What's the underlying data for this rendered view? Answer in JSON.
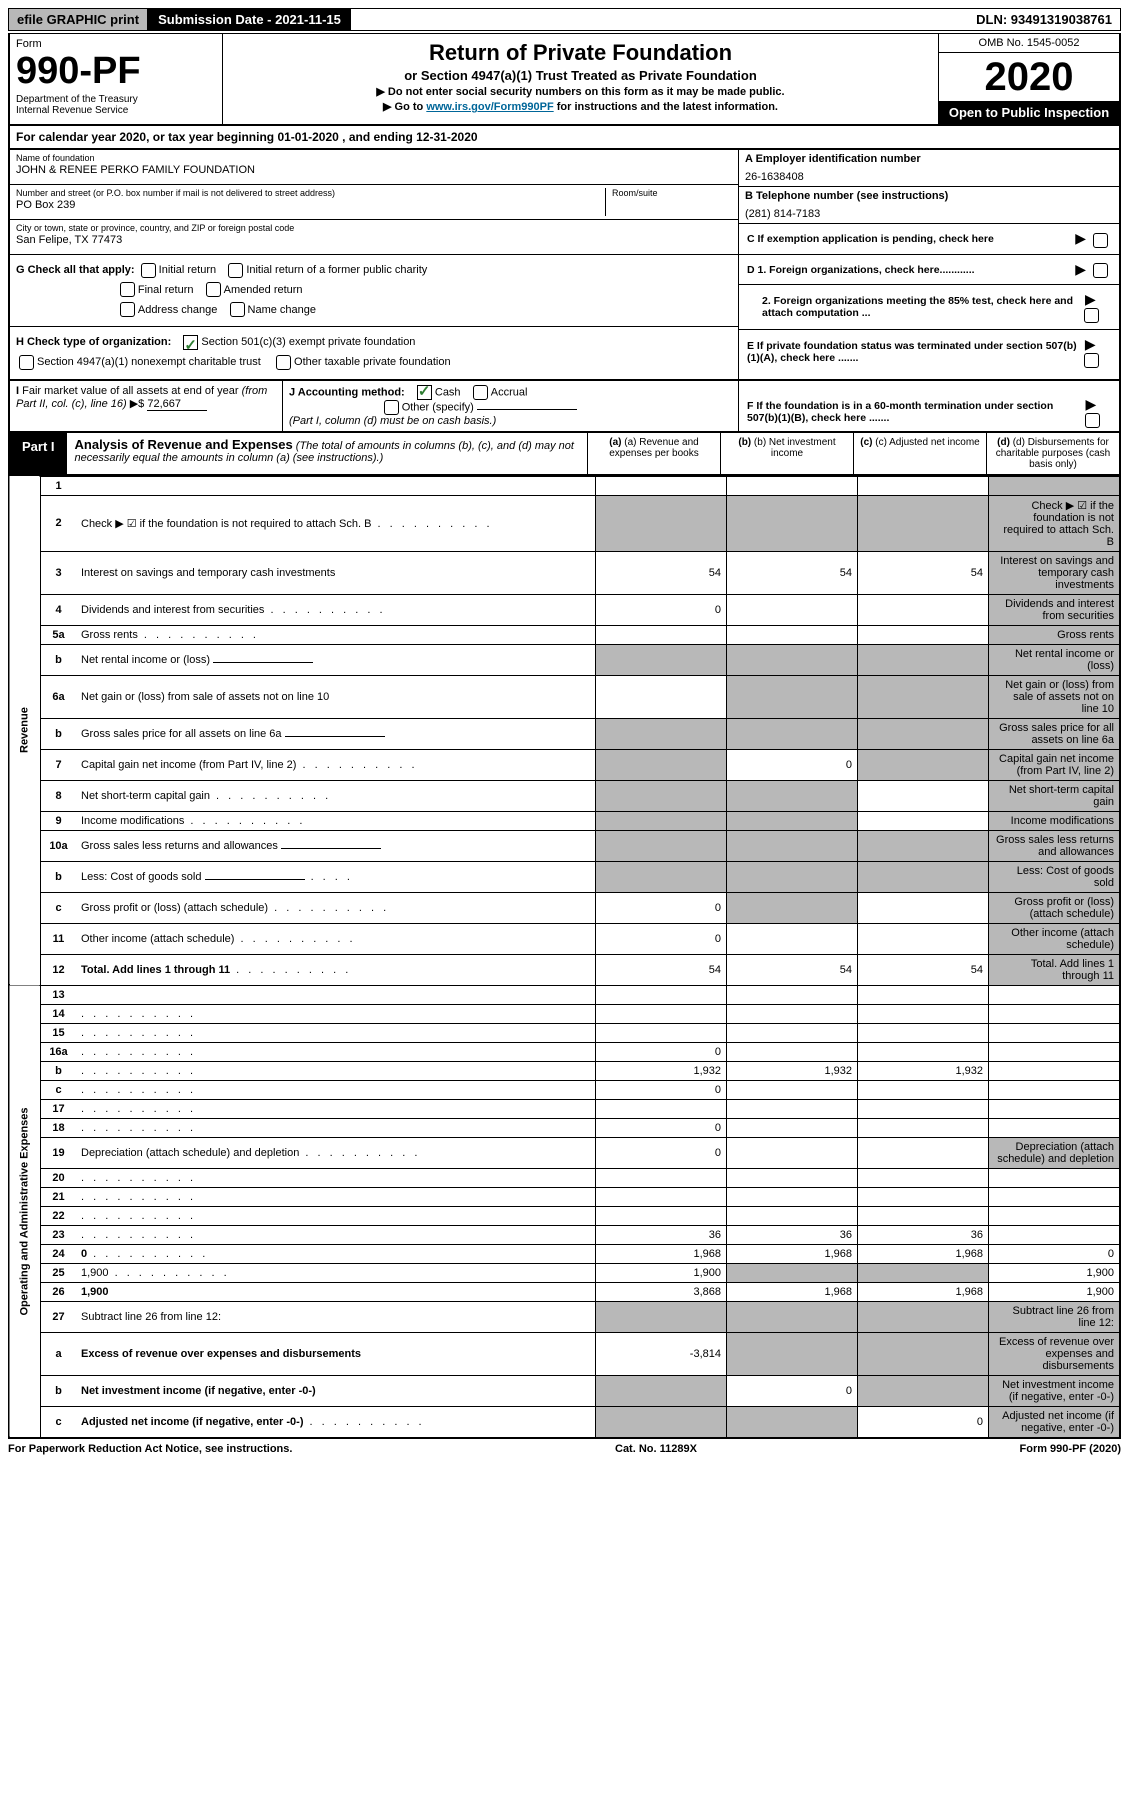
{
  "topbar": {
    "efile": "efile GRAPHIC print",
    "submission": "Submission Date - 2021-11-15",
    "dln": "DLN: 93491319038761"
  },
  "header": {
    "form_label": "Form",
    "form_num": "990-PF",
    "dept": "Department of the Treasury\nInternal Revenue Service",
    "title": "Return of Private Foundation",
    "subtitle": "or Section 4947(a)(1) Trust Treated as Private Foundation",
    "instr1": "▶ Do not enter social security numbers on this form as it may be made public.",
    "instr2_pre": "▶ Go to ",
    "instr2_link": "www.irs.gov/Form990PF",
    "instr2_post": " for instructions and the latest information.",
    "omb": "OMB No. 1545-0052",
    "year": "2020",
    "open": "Open to Public Inspection"
  },
  "calyear": "For calendar year 2020, or tax year beginning 01-01-2020                    , and ending 12-31-2020",
  "info": {
    "name_label": "Name of foundation",
    "name": "JOHN & RENEE PERKO FAMILY FOUNDATION",
    "addr_label": "Number and street (or P.O. box number if mail is not delivered to street address)",
    "addr": "PO Box 239",
    "room_label": "Room/suite",
    "city_label": "City or town, state or province, country, and ZIP or foreign postal code",
    "city": "San Felipe, TX  77473",
    "ein_label": "A Employer identification number",
    "ein": "26-1638408",
    "phone_label": "B Telephone number (see instructions)",
    "phone": "(281) 814-7183",
    "c_label": "C If exemption application is pending, check here",
    "d1_label": "D 1. Foreign organizations, check here............",
    "d2_label": "2. Foreign organizations meeting the 85% test, check here and attach computation ...",
    "e_label": "E If private foundation status was terminated under section 507(b)(1)(A), check here .......",
    "f_label": "F If the foundation is in a 60-month termination under section 507(b)(1)(B), check here .......",
    "g_label": "G Check all that apply:",
    "g_opts": [
      "Initial return",
      "Initial return of a former public charity",
      "Final return",
      "Amended return",
      "Address change",
      "Name change"
    ],
    "h_label": "H Check type of organization:",
    "h_opt1": "Section 501(c)(3) exempt private foundation",
    "h_opt2": "Section 4947(a)(1) nonexempt charitable trust",
    "h_opt3": "Other taxable private foundation",
    "i_label": "I Fair market value of all assets at end of year (from Part II, col. (c), line 16) ▶$",
    "i_val": "72,667",
    "j_label": "J Accounting method:",
    "j_cash": "Cash",
    "j_accrual": "Accrual",
    "j_other": "Other (specify)",
    "j_note": "(Part I, column (d) must be on cash basis.)"
  },
  "part1": {
    "label": "Part I",
    "title": "Analysis of Revenue and Expenses",
    "note": "(The total of amounts in columns (b), (c), and (d) may not necessarily equal the amounts in column (a) (see instructions).)",
    "col_a": "(a) Revenue and expenses per books",
    "col_b": "(b) Net investment income",
    "col_c": "(c) Adjusted net income",
    "col_d": "(d) Disbursements for charitable purposes (cash basis only)"
  },
  "section_labels": {
    "revenue": "Revenue",
    "expenses": "Operating and Administrative Expenses"
  },
  "rows": [
    {
      "n": "1",
      "d": "",
      "a": "",
      "b": "",
      "c": "",
      "d_grey": true
    },
    {
      "n": "2",
      "d": "Check ▶ ☑ if the foundation is not required to attach Sch. B",
      "dots": true,
      "a_grey": true,
      "b_grey": true,
      "c_grey": true,
      "d_grey": true
    },
    {
      "n": "3",
      "d": "Interest on savings and temporary cash investments",
      "a": "54",
      "b": "54",
      "c": "54",
      "d_grey": true
    },
    {
      "n": "4",
      "d": "Dividends and interest from securities",
      "dots": true,
      "a": "0",
      "b": "",
      "c": "",
      "d_grey": true
    },
    {
      "n": "5a",
      "d": "Gross rents",
      "dots": true,
      "a": "",
      "b": "",
      "c": "",
      "d_grey": true
    },
    {
      "n": "b",
      "d": "Net rental income or (loss)",
      "inline_ul": true,
      "a_grey": true,
      "b_grey": true,
      "c_grey": true,
      "d_grey": true
    },
    {
      "n": "6a",
      "d": "Net gain or (loss) from sale of assets not on line 10",
      "a": "",
      "b_grey": true,
      "c_grey": true,
      "d_grey": true
    },
    {
      "n": "b",
      "d": "Gross sales price for all assets on line 6a",
      "inline_ul": true,
      "a_grey": true,
      "b_grey": true,
      "c_grey": true,
      "d_grey": true
    },
    {
      "n": "7",
      "d": "Capital gain net income (from Part IV, line 2)",
      "dots": true,
      "a_grey": true,
      "b": "0",
      "c_grey": true,
      "d_grey": true
    },
    {
      "n": "8",
      "d": "Net short-term capital gain",
      "dots": true,
      "a_grey": true,
      "b_grey": true,
      "c": "",
      "d_grey": true
    },
    {
      "n": "9",
      "d": "Income modifications",
      "dots": true,
      "a_grey": true,
      "b_grey": true,
      "c": "",
      "d_grey": true
    },
    {
      "n": "10a",
      "d": "Gross sales less returns and allowances",
      "inline_ul": true,
      "a_grey": true,
      "b_grey": true,
      "c_grey": true,
      "d_grey": true
    },
    {
      "n": "b",
      "d": "Less: Cost of goods sold",
      "dots_short": true,
      "inline_ul": true,
      "a_grey": true,
      "b_grey": true,
      "c_grey": true,
      "d_grey": true
    },
    {
      "n": "c",
      "d": "Gross profit or (loss) (attach schedule)",
      "dots": true,
      "a": "0",
      "b_grey": true,
      "c": "",
      "d_grey": true
    },
    {
      "n": "11",
      "d": "Other income (attach schedule)",
      "dots": true,
      "a": "0",
      "b": "",
      "c": "",
      "d_grey": true
    },
    {
      "n": "12",
      "d": "Total. Add lines 1 through 11",
      "bold": true,
      "dots": true,
      "a": "54",
      "b": "54",
      "c": "54",
      "d_grey": true
    }
  ],
  "exp_rows": [
    {
      "n": "13",
      "d": "",
      "a": "",
      "b": "",
      "c": ""
    },
    {
      "n": "14",
      "d": "",
      "dots": true,
      "a": "",
      "b": "",
      "c": ""
    },
    {
      "n": "15",
      "d": "",
      "dots": true,
      "a": "",
      "b": "",
      "c": ""
    },
    {
      "n": "16a",
      "d": "",
      "dots": true,
      "a": "0",
      "b": "",
      "c": ""
    },
    {
      "n": "b",
      "d": "",
      "dots": true,
      "a": "1,932",
      "b": "1,932",
      "c": "1,932"
    },
    {
      "n": "c",
      "d": "",
      "dots": true,
      "a": "0",
      "b": "",
      "c": ""
    },
    {
      "n": "17",
      "d": "",
      "dots": true,
      "a": "",
      "b": "",
      "c": ""
    },
    {
      "n": "18",
      "d": "",
      "dots": true,
      "a": "0",
      "b": "",
      "c": ""
    },
    {
      "n": "19",
      "d": "Depreciation (attach schedule) and depletion",
      "dots": true,
      "a": "0",
      "b": "",
      "c": "",
      "d_grey": true
    },
    {
      "n": "20",
      "d": "",
      "dots": true,
      "a": "",
      "b": "",
      "c": ""
    },
    {
      "n": "21",
      "d": "",
      "dots": true,
      "a": "",
      "b": "",
      "c": ""
    },
    {
      "n": "22",
      "d": "",
      "dots": true,
      "a": "",
      "b": "",
      "c": ""
    },
    {
      "n": "23",
      "d": "",
      "dots": true,
      "a": "36",
      "b": "36",
      "c": "36"
    },
    {
      "n": "24",
      "d": "0",
      "bold": true,
      "dots": true,
      "a": "1,968",
      "b": "1,968",
      "c": "1,968"
    },
    {
      "n": "25",
      "d": "1,900",
      "dots": true,
      "a": "1,900",
      "b_grey": true,
      "c_grey": true
    },
    {
      "n": "26",
      "d": "1,900",
      "bold": true,
      "a": "3,868",
      "b": "1,968",
      "c": "1,968"
    },
    {
      "n": "27",
      "d": "Subtract line 26 from line 12:",
      "a_grey": true,
      "b_grey": true,
      "c_grey": true,
      "d_grey": true
    },
    {
      "n": "a",
      "d": "Excess of revenue over expenses and disbursements",
      "bold": true,
      "a": "-3,814",
      "b_grey": true,
      "c_grey": true,
      "d_grey": true
    },
    {
      "n": "b",
      "d": "Net investment income (if negative, enter -0-)",
      "bold": true,
      "a_grey": true,
      "b": "0",
      "c_grey": true,
      "d_grey": true
    },
    {
      "n": "c",
      "d": "Adjusted net income (if negative, enter -0-)",
      "bold": true,
      "dots": true,
      "a_grey": true,
      "b_grey": true,
      "c": "0",
      "d_grey": true
    }
  ],
  "footer": {
    "left": "For Paperwork Reduction Act Notice, see instructions.",
    "mid": "Cat. No. 11289X",
    "right": "Form 990-PF (2020)"
  }
}
